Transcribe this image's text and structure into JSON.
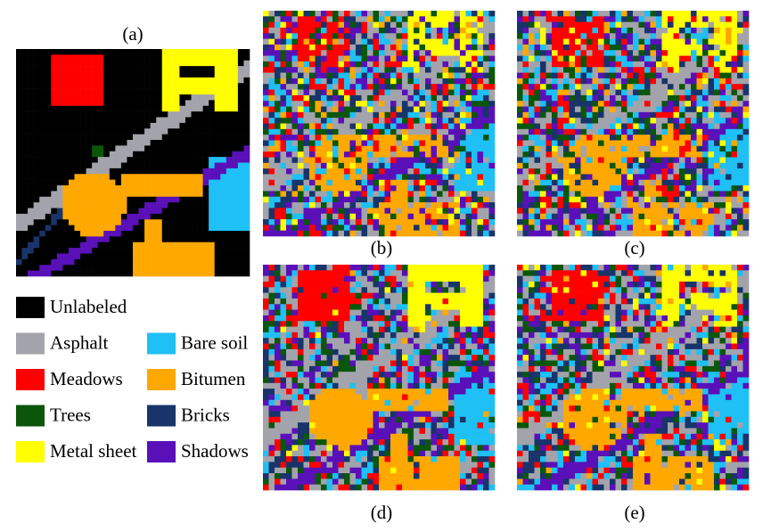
{
  "panels": [
    {
      "label": "(a)"
    },
    {
      "label": "(b)"
    },
    {
      "label": "(c)"
    },
    {
      "label": "(d)"
    },
    {
      "label": "(e)"
    }
  ],
  "legend": [
    {
      "label": "Unlabeled",
      "color": "#000000"
    },
    {
      "label": "Asphalt",
      "color": "#a3a3ab"
    },
    {
      "label": "Meadows",
      "color": "#ff0000"
    },
    {
      "label": "Trees",
      "color": "#0a560a"
    },
    {
      "label": "Metal sheet",
      "color": "#ffff00"
    },
    {
      "label": "Bare soil",
      "color": "#1ec0f5"
    },
    {
      "label": "Bitumen",
      "color": "#ffa800"
    },
    {
      "label": "Bricks",
      "color": "#18346a"
    },
    {
      "label": "Shadows",
      "color": "#5a10b8"
    }
  ]
}
